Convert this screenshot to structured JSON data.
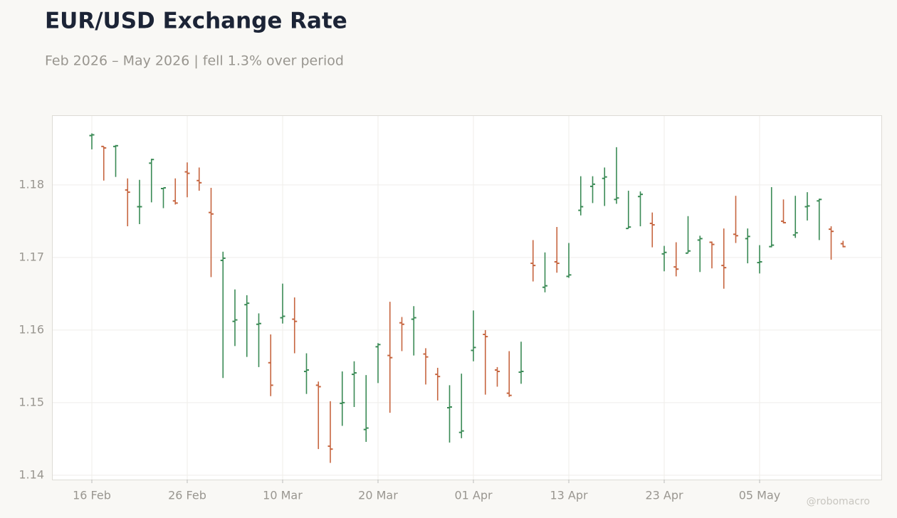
{
  "chart_data": {
    "type": "ohlc",
    "title": "EUR/USD Exchange Rate",
    "subtitle": "Feb 2026 – May 2026 | fell 1.3% over period",
    "watermark": "@robomacro",
    "categories": [
      "16 Feb",
      null,
      null,
      null,
      null,
      null,
      null,
      null,
      "26 Feb",
      null,
      null,
      null,
      null,
      null,
      null,
      null,
      "10 Mar",
      null,
      null,
      null,
      null,
      null,
      null,
      null,
      "20 Mar",
      null,
      null,
      null,
      null,
      null,
      null,
      null,
      "01 Apr",
      null,
      null,
      null,
      null,
      null,
      null,
      null,
      "13 Apr",
      null,
      null,
      null,
      null,
      null,
      null,
      null,
      "23 Apr",
      null,
      null,
      null,
      null,
      null,
      null,
      null,
      "05 May",
      null,
      null,
      null,
      null,
      null,
      null,
      null
    ],
    "open": [
      1.1868,
      1.1853,
      1.1853,
      1.1793,
      1.177,
      1.183,
      1.1795,
      1.1778,
      1.1818,
      1.1806,
      1.1762,
      1.1696,
      1.1612,
      1.1635,
      1.1608,
      1.1555,
      1.1617,
      1.1615,
      1.1543,
      1.1524,
      1.144,
      1.1499,
      1.1539,
      1.1463,
      1.1577,
      1.1565,
      1.161,
      1.1615,
      1.1567,
      1.1539,
      1.1493,
      1.1459,
      1.1572,
      1.1594,
      1.1545,
      1.1513,
      1.1542,
      1.1692,
      1.1659,
      1.1694,
      1.1674,
      1.1765,
      1.1798,
      1.1809,
      1.178,
      1.174,
      1.1784,
      1.1747,
      1.1705,
      1.1687,
      1.1706,
      1.1724,
      1.1721,
      1.1689,
      1.1732,
      1.1726,
      1.1693,
      1.1715,
      1.175,
      1.1731,
      1.177,
      1.1778,
      1.1739,
      1.1719
    ],
    "high": [
      1.1871,
      1.1853,
      1.1855,
      1.1809,
      1.1807,
      1.1836,
      1.1796,
      1.1809,
      1.1831,
      1.1824,
      1.1796,
      1.1708,
      1.1656,
      1.1648,
      1.1623,
      1.1594,
      1.1664,
      1.1645,
      1.1568,
      1.1529,
      1.1502,
      1.1543,
      1.1557,
      1.1538,
      1.1582,
      1.1639,
      1.1618,
      1.1633,
      1.1575,
      1.1548,
      1.1524,
      1.154,
      1.1627,
      1.16,
      1.1549,
      1.1571,
      1.1584,
      1.1724,
      1.1707,
      1.1742,
      1.172,
      1.1812,
      1.1812,
      1.1824,
      1.1852,
      1.1792,
      1.1791,
      1.1762,
      1.1716,
      1.1721,
      1.1757,
      1.173,
      1.1722,
      1.174,
      1.1785,
      1.174,
      1.1717,
      1.1797,
      1.178,
      1.1785,
      1.179,
      1.1781,
      1.1743,
      1.1723
    ],
    "low": [
      1.1849,
      1.1806,
      1.1811,
      1.1743,
      1.1746,
      1.1776,
      1.1768,
      1.1773,
      1.1783,
      1.1792,
      1.1673,
      1.1534,
      1.1578,
      1.1563,
      1.1549,
      1.1509,
      1.1609,
      1.1568,
      1.1512,
      1.1436,
      1.1417,
      1.1468,
      1.1494,
      1.1446,
      1.1527,
      1.1486,
      1.1571,
      1.1565,
      1.1525,
      1.1503,
      1.1445,
      1.1451,
      1.1557,
      1.1511,
      1.1522,
      1.1508,
      1.1526,
      1.1667,
      1.1652,
      1.1679,
      1.1672,
      1.1758,
      1.1775,
      1.1771,
      1.1774,
      1.174,
      1.1743,
      1.1714,
      1.1681,
      1.1674,
      1.1706,
      1.168,
      1.1685,
      1.1657,
      1.172,
      1.1692,
      1.1678,
      1.1714,
      1.1747,
      1.1727,
      1.1751,
      1.1724,
      1.1697,
      1.1714
    ],
    "close": [
      1.1869,
      1.1851,
      1.1854,
      1.179,
      1.177,
      1.1835,
      1.1796,
      1.1775,
      1.1816,
      1.1803,
      1.176,
      1.1699,
      1.1614,
      1.1637,
      1.1609,
      1.1524,
      1.1619,
      1.1612,
      1.1545,
      1.1522,
      1.1436,
      1.15,
      1.1541,
      1.1465,
      1.158,
      1.1562,
      1.1608,
      1.1617,
      1.1563,
      1.1536,
      1.1494,
      1.1461,
      1.1576,
      1.1591,
      1.1543,
      1.151,
      1.1543,
      1.1689,
      1.1661,
      1.1692,
      1.1676,
      1.177,
      1.1801,
      1.1811,
      1.1782,
      1.1742,
      1.1787,
      1.1745,
      1.1707,
      1.1684,
      1.1709,
      1.1726,
      1.1718,
      1.1686,
      1.173,
      1.1729,
      1.1694,
      1.1717,
      1.1748,
      1.1734,
      1.1771,
      1.178,
      1.1736,
      1.1715
    ],
    "up_color": "#3a8a55",
    "down_color": "#c6653f",
    "ylim": [
      1.1394,
      1.1895
    ],
    "yticks": [
      1.14,
      1.15,
      1.16,
      1.17,
      1.18
    ],
    "grid": true
  }
}
